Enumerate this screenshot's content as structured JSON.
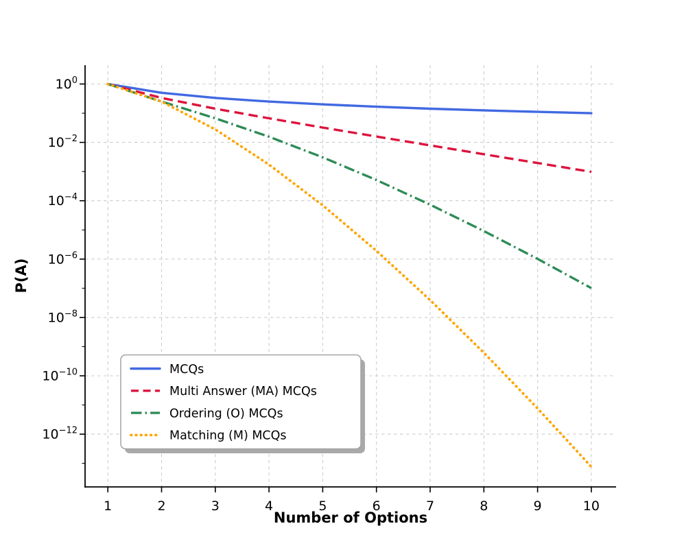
{
  "figure": {
    "background": "#ffffff",
    "grid_color": "#cccccc",
    "spine_color": "#000000",
    "legend_border_color": "#a3a3a3",
    "legend_shadow_color": "#a9a9a9",
    "legend_background": "#ffffff"
  },
  "chart_data": {
    "type": "line",
    "title": "",
    "xlabel": "Number of Options",
    "ylabel": "P(A)",
    "x": [
      1,
      2,
      3,
      4,
      5,
      6,
      7,
      8,
      9,
      10
    ],
    "x_ticks": [
      "1",
      "2",
      "3",
      "4",
      "5",
      "6",
      "7",
      "8",
      "9",
      "10"
    ],
    "y_scale": "log",
    "y_tick_exponents": [
      0,
      -2,
      -4,
      -6,
      -8,
      -10,
      -12
    ],
    "y_minor_exponents": [
      -1,
      -3,
      -5,
      -7,
      -9,
      -11,
      -13
    ],
    "xlim": [
      0.576,
      10.46
    ],
    "ylim_exponents": [
      -13.8,
      0.646
    ],
    "grid": true,
    "legend_position": "lower left",
    "series": [
      {
        "name": "MCQs",
        "color": "#4169E1",
        "style": "solid",
        "values": [
          1,
          0.5,
          0.33333,
          0.25,
          0.2,
          0.16667,
          0.14286,
          0.125,
          0.11111,
          0.1
        ]
      },
      {
        "name": "Multi Answer (MA) MCQs",
        "color": "#DC143C",
        "style": "dashed",
        "values": [
          1,
          0.33333,
          0.14286,
          0.066667,
          0.032258,
          0.015873,
          0.007874,
          0.0039216,
          0.0019569,
          0.00097752
        ]
      },
      {
        "name": "Ordering (O) MCQs",
        "color": "#2E8B57",
        "style": "dashdot",
        "values": [
          1,
          0.25,
          0.066667,
          0.015625,
          0.0030769,
          0.00051125,
          7.2998e-05,
          9.1241e-06,
          1.0138e-06,
          1.0138e-07
        ]
      },
      {
        "name": "Matching (M) MCQs",
        "color": "#FFA500",
        "style": "dotted",
        "values": [
          1,
          0.25,
          0.027778,
          0.0017361,
          6.9444e-05,
          1.929e-06,
          3.9368e-08,
          6.1512e-10,
          7.594e-12,
          7.594e-14
        ]
      }
    ]
  }
}
